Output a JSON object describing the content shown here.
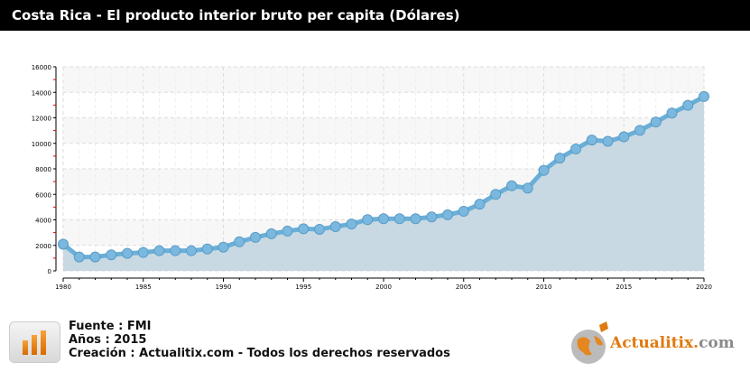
{
  "title": "Costa Rica - El producto interior bruto per capita (Dólares)",
  "chart_data": {
    "type": "area",
    "title": "Costa Rica - El producto interior bruto per capita (Dólares)",
    "xlabel": "",
    "ylabel": "",
    "x": [
      1980,
      1981,
      1982,
      1983,
      1984,
      1985,
      1986,
      1987,
      1988,
      1989,
      1990,
      1991,
      1992,
      1993,
      1994,
      1995,
      1996,
      1997,
      1998,
      1999,
      2000,
      2001,
      2002,
      2003,
      2004,
      2005,
      2006,
      2007,
      2008,
      2009,
      2010,
      2011,
      2012,
      2013,
      2014,
      2015,
      2016,
      2017,
      2018,
      2019,
      2020
    ],
    "values": [
      2090,
      1090,
      1090,
      1260,
      1370,
      1440,
      1580,
      1580,
      1580,
      1720,
      1860,
      2280,
      2630,
      2910,
      3120,
      3300,
      3260,
      3470,
      3670,
      4020,
      4090,
      4090,
      4090,
      4230,
      4400,
      4670,
      5230,
      6000,
      6670,
      6490,
      7880,
      8840,
      9560,
      10260,
      10160,
      10510,
      11020,
      11670,
      12370,
      12980,
      13670
    ],
    "xlim": [
      1980,
      2020
    ],
    "ylim": [
      0,
      16000
    ],
    "xticks": [
      "1980",
      "1985",
      "1990",
      "1995",
      "2000",
      "2005",
      "2010",
      "2015",
      "2020"
    ],
    "yticks": [
      "0",
      "2000",
      "4000",
      "6000",
      "8000",
      "10000",
      "12000",
      "14000",
      "16000"
    ],
    "grid": true,
    "colors": {
      "line": "#6aafd8",
      "fill": "#c5d7e2",
      "marker": "#7ab8df"
    }
  },
  "footer": {
    "source": "Fuente : FMI",
    "years": "Años : 2015",
    "creation": "Creación : Actualitix.com - Todos los derechos reservados"
  },
  "logo": {
    "name": "Actualitix",
    "dot": ".",
    "tld": "com"
  }
}
